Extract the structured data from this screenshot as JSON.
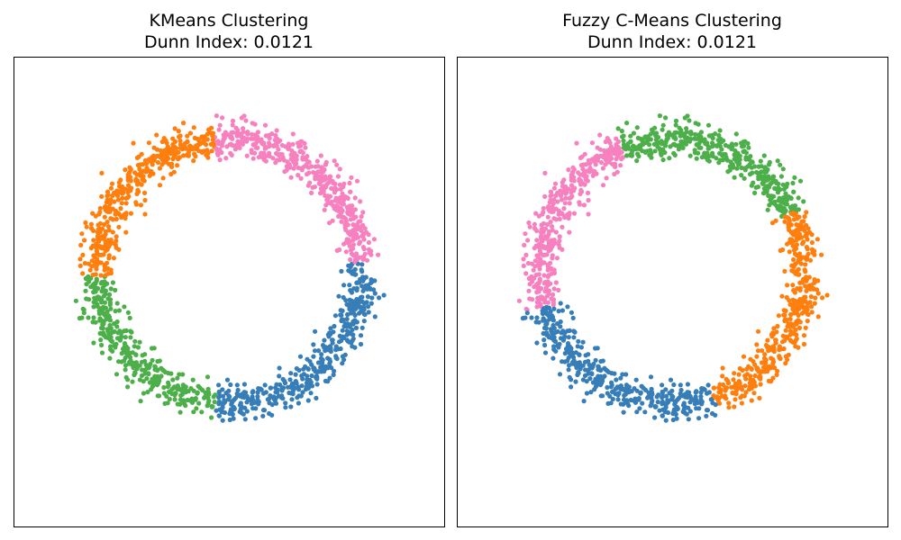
{
  "chart_data": [
    {
      "type": "scatter",
      "title": "KMeans Clustering",
      "subtitle": "Dunn Index: 0.0121",
      "xlabel": "",
      "ylabel": "",
      "axes_visible": false,
      "grid": false,
      "xlim": [
        -1.3,
        1.3
      ],
      "ylim": [
        -1.55,
        1.3
      ],
      "ring": {
        "center": [
          0,
          0
        ],
        "radius": 0.8,
        "noise_sd": 0.05,
        "points": 1600
      },
      "clusters": [
        {
          "color": "#ff7f0e",
          "angle_range_deg": [
            96,
            182
          ]
        },
        {
          "color": "#f781bf",
          "angle_range_deg": [
            4,
            96
          ]
        },
        {
          "color": "#377eb8",
          "angle_range_deg": [
            -96,
            4
          ]
        },
        {
          "color": "#4daf4a",
          "angle_range_deg": [
            182,
            264
          ]
        }
      ]
    },
    {
      "type": "scatter",
      "title": "Fuzzy C-Means Clustering",
      "subtitle": "Dunn Index: 0.0121",
      "xlabel": "",
      "ylabel": "",
      "axes_visible": false,
      "grid": false,
      "xlim": [
        -1.3,
        1.3
      ],
      "ylim": [
        -1.55,
        1.3
      ],
      "ring": {
        "center": [
          0,
          0
        ],
        "radius": 0.8,
        "noise_sd": 0.05,
        "points": 1600
      },
      "clusters": [
        {
          "color": "#4daf4a",
          "angle_range_deg": [
            26,
            112
          ]
        },
        {
          "color": "#f781bf",
          "angle_range_deg": [
            112,
            196
          ]
        },
        {
          "color": "#377eb8",
          "angle_range_deg": [
            196,
            288
          ]
        },
        {
          "color": "#ff7f0e",
          "angle_range_deg": [
            -72,
            26
          ]
        }
      ]
    }
  ]
}
